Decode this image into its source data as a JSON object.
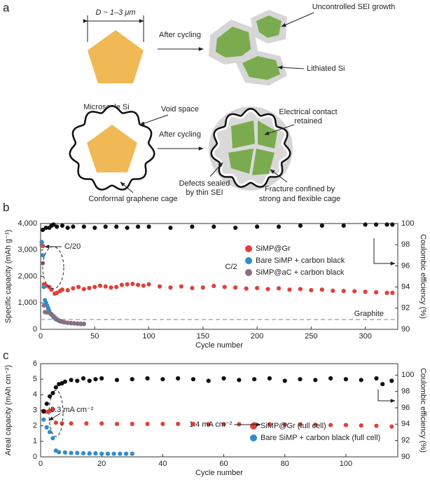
{
  "diagram": {
    "panel_label": "a",
    "size_label": "D ~ 1–3 μm",
    "particle_label": "Microscale Si",
    "arrow_label_top": "After cycling",
    "sei_label": "Uncontrolled SEI growth",
    "lithiated_label": "Lithiated Si",
    "void_label": "Void space",
    "arrow_label_bottom": "After cycling",
    "contact_label": [
      "Electrical contact",
      "retained"
    ],
    "cage_label": "Conformal graphene cage",
    "defects_label": [
      "Defects sealed",
      "by thin SEI"
    ],
    "fracture_label": [
      "Fracture confined by",
      "strong and flexible cage"
    ]
  },
  "chart_data": [
    {
      "type": "scatter",
      "panel_label": "b",
      "xlabel": "Cycle number",
      "ylabel": "Specific capacity (mAh g⁻¹)",
      "y2label": "Coulombic efficiency (%)",
      "xlim": [
        0,
        330
      ],
      "xticks": [
        0,
        50,
        100,
        150,
        200,
        250,
        300
      ],
      "ylim": [
        0,
        4000
      ],
      "yticks": [
        0,
        {
          "value": 1000,
          "label": "1,000"
        },
        {
          "value": 2000,
          "label": "2,000"
        },
        {
          "value": 3000,
          "label": "3,000"
        },
        {
          "value": 4000,
          "label": "4,000"
        }
      ],
      "y2lim": [
        90,
        100
      ],
      "y2ticks": [
        90,
        92,
        94,
        96,
        98,
        100
      ],
      "legend": "center right",
      "annotations": [
        "C/20",
        "C/2"
      ],
      "reference_line": {
        "value": 372,
        "label": "Graphite"
      },
      "series": [
        {
          "name": "SiMP@Gr",
          "color": "#e0413a",
          "x": [
            1,
            2,
            3,
            5,
            8,
            10,
            13,
            15,
            18,
            20,
            25,
            30,
            35,
            40,
            45,
            50,
            55,
            60,
            65,
            70,
            75,
            80,
            85,
            90,
            95,
            100,
            110,
            120,
            130,
            140,
            150,
            160,
            170,
            180,
            190,
            200,
            210,
            220,
            230,
            240,
            250,
            260,
            270,
            280,
            290,
            300,
            310,
            320,
            325
          ],
          "values": [
            3300,
            3150,
            1700,
            1650,
            1600,
            1500,
            1350,
            1380,
            1450,
            1500,
            1480,
            1550,
            1600,
            1520,
            1560,
            1600,
            1650,
            1620,
            1580,
            1600,
            1680,
            1700,
            1720,
            1680,
            1650,
            1700,
            1620,
            1580,
            1620,
            1560,
            1580,
            1640,
            1600,
            1580,
            1540,
            1560,
            1520,
            1550,
            1500,
            1520,
            1480,
            1500,
            1460,
            1450,
            1440,
            1420,
            1400,
            1380,
            1380
          ]
        },
        {
          "name": "Bare SiMP + carbon black",
          "color": "#2f8ccb",
          "x": [
            1,
            2,
            3,
            4,
            5,
            6,
            7,
            8,
            10,
            12,
            14,
            16,
            18,
            20,
            22,
            25,
            28,
            31,
            34,
            37,
            40
          ],
          "values": [
            3300,
            2800,
            1600,
            1100,
            1000,
            900,
            800,
            700,
            550,
            450,
            380,
            340,
            300,
            280,
            260,
            240,
            230,
            220,
            210,
            200,
            200
          ]
        },
        {
          "name": "SiMP@aC + carbon black",
          "color": "#8c6d80",
          "x": [
            1,
            2,
            3,
            4,
            5,
            6,
            8,
            10,
            12,
            14,
            16,
            18,
            20,
            22,
            25,
            28,
            31,
            34,
            37,
            40
          ],
          "values": [
            3200,
            2500,
            900,
            650,
            650,
            640,
            620,
            580,
            500,
            420,
            360,
            320,
            290,
            270,
            250,
            240,
            230,
            220,
            215,
            210
          ]
        },
        {
          "color": "#111111",
          "axis": "y2",
          "x": [
            2,
            5,
            8,
            10,
            12,
            15,
            20,
            25,
            30,
            40,
            50,
            60,
            70,
            80,
            90,
            100,
            120,
            140,
            160,
            180,
            200,
            220,
            240,
            260,
            280,
            300,
            310,
            320,
            325
          ],
          "values": [
            99.4,
            99.6,
            99.6,
            99.8,
            99.9,
            99.7,
            99.8,
            99.6,
            99.7,
            99.7,
            99.6,
            99.7,
            99.7,
            99.6,
            99.7,
            99.7,
            99.6,
            99.7,
            99.7,
            99.6,
            99.7,
            99.7,
            99.8,
            99.8,
            99.8,
            99.9,
            99.9,
            99.9,
            99.9
          ]
        }
      ]
    },
    {
      "type": "scatter",
      "panel_label": "c",
      "xlabel": "Cycle number",
      "ylabel": "Areal capacity (mAh cm⁻²)",
      "y2label": "Coulombic efficiency (%)",
      "xlim": [
        0,
        117
      ],
      "xticks": [
        0,
        20,
        40,
        60,
        80,
        100
      ],
      "ylim": [
        0,
        6
      ],
      "yticks": [
        0,
        1,
        2,
        3,
        4,
        5,
        6
      ],
      "y2lim": [
        90,
        101.4
      ],
      "y2ticks": [
        90,
        92,
        94,
        96,
        98,
        100
      ],
      "legend": "lower right",
      "annotations": [
        "0.3 mA cm⁻²",
        "1.4 mA cm⁻²"
      ],
      "series": [
        {
          "name": "SiMP@Gr (full cell)",
          "color": "#e0413a",
          "x": [
            1,
            2,
            3,
            4,
            5,
            7,
            10,
            15,
            20,
            25,
            30,
            35,
            40,
            45,
            50,
            55,
            60,
            65,
            70,
            75,
            80,
            85,
            90,
            95,
            100,
            105,
            110,
            115
          ],
          "values": [
            2.9,
            2.9,
            2.95,
            3.05,
            2.2,
            2.15,
            2.15,
            2.15,
            2.15,
            2.12,
            2.12,
            2.12,
            2.12,
            2.12,
            2.12,
            2.1,
            2.1,
            2.1,
            2.1,
            2.1,
            2.08,
            2.08,
            2.07,
            2.05,
            2.05,
            2.02,
            2.0,
            1.95
          ]
        },
        {
          "name": "Bare SiMP + carbon black (full cell)",
          "color": "#2f8ccb",
          "x": [
            1,
            2,
            3,
            4,
            5,
            6,
            8,
            10,
            12,
            14,
            16,
            18,
            20,
            22,
            24,
            26,
            28,
            30
          ],
          "values": [
            2.4,
            1.9,
            1.6,
            1.2,
            0.4,
            0.3,
            0.28,
            0.25,
            0.25,
            0.23,
            0.22,
            0.22,
            0.2,
            0.2,
            0.2,
            0.2,
            0.2,
            0.2
          ]
        },
        {
          "color": "#111111",
          "axis": "y2",
          "x": [
            1,
            2,
            3,
            4,
            5,
            6,
            7,
            8,
            10,
            12,
            14,
            16,
            18,
            20,
            25,
            30,
            35,
            40,
            45,
            50,
            55,
            60,
            65,
            70,
            75,
            80,
            85,
            90,
            95,
            100,
            105,
            110,
            112,
            115
          ],
          "values": [
            95.6,
            96.5,
            97.4,
            97.8,
            98.5,
            98.9,
            99.0,
            99.2,
            99.4,
            99.3,
            99.6,
            99.3,
            99.5,
            99.6,
            99.4,
            99.5,
            99.6,
            99.5,
            99.6,
            99.5,
            99.3,
            99.6,
            99.4,
            99.5,
            99.6,
            99.3,
            99.5,
            99.4,
            99.6,
            99.5,
            99.4,
            99.6,
            98.9,
            99.3
          ]
        }
      ]
    }
  ]
}
